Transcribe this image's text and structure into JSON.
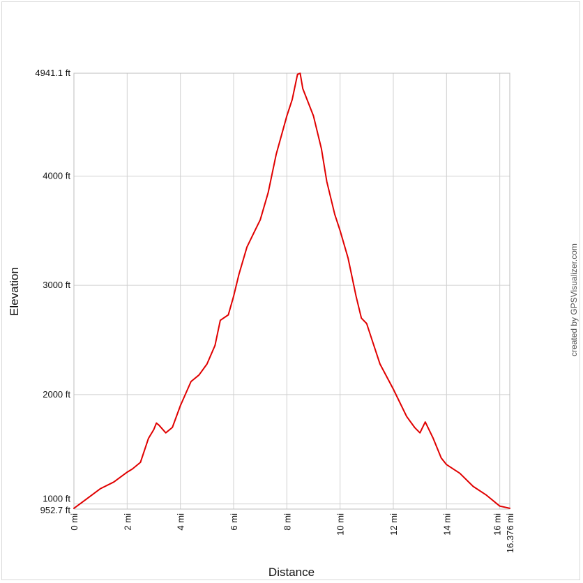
{
  "chart_data": {
    "type": "line",
    "xlabel": "Distance",
    "ylabel": "Elevation",
    "xlim": [
      0,
      16.376
    ],
    "ylim": [
      952.7,
      4941.1
    ],
    "grid": true,
    "series_color": "#e00000",
    "grid_color": "#d0d0d0",
    "x_ticks": [
      {
        "value": 0,
        "label": "0 mi"
      },
      {
        "value": 2,
        "label": "2 mi"
      },
      {
        "value": 4,
        "label": "4 mi"
      },
      {
        "value": 6,
        "label": "6 mi"
      },
      {
        "value": 8,
        "label": "8 mi"
      },
      {
        "value": 10,
        "label": "10 mi"
      },
      {
        "value": 12,
        "label": "12 mi"
      },
      {
        "value": 14,
        "label": "14 mi"
      },
      {
        "value": 16,
        "label": "16 mi"
      },
      {
        "value": 16.376,
        "label": "16.376 mi"
      }
    ],
    "y_ticks": [
      {
        "value": 952.7,
        "label": "952.7 ft"
      },
      {
        "value": 1000,
        "label": "1000 ft"
      },
      {
        "value": 2000,
        "label": "2000 ft"
      },
      {
        "value": 3000,
        "label": "3000 ft"
      },
      {
        "value": 4000,
        "label": "4000 ft"
      },
      {
        "value": 4941.1,
        "label": "4941.1 ft"
      }
    ],
    "series": [
      {
        "x": [
          0,
          0.5,
          1.0,
          1.5,
          2.0,
          2.2,
          2.5,
          2.8,
          3.0,
          3.1,
          3.2,
          3.45,
          3.7,
          4.0,
          4.4,
          4.7,
          5.0,
          5.3,
          5.5,
          5.8,
          6.0,
          6.2,
          6.5,
          6.8,
          7.0,
          7.3,
          7.6,
          8.0,
          8.2,
          8.4,
          8.5,
          8.6,
          9.0,
          9.3,
          9.5,
          9.8,
          10.0,
          10.3,
          10.6,
          10.8,
          11.0,
          11.2,
          11.5,
          12.0,
          12.5,
          12.8,
          13.0,
          13.2,
          13.5,
          13.8,
          14.0,
          14.5,
          15.0,
          15.5,
          16.0,
          16.376
        ],
        "y": [
          960,
          1050,
          1140,
          1200,
          1290,
          1320,
          1380,
          1600,
          1680,
          1740,
          1720,
          1650,
          1700,
          1900,
          2120,
          2180,
          2280,
          2450,
          2680,
          2730,
          2900,
          3100,
          3350,
          3500,
          3600,
          3850,
          4200,
          4550,
          4700,
          4930,
          4941.1,
          4800,
          4550,
          4250,
          3950,
          3650,
          3500,
          3250,
          2900,
          2700,
          2650,
          2500,
          2280,
          2050,
          1800,
          1700,
          1650,
          1750,
          1600,
          1420,
          1360,
          1280,
          1160,
          1080,
          980,
          960
        ]
      }
    ]
  },
  "credit": "created by GPSVisualizer.com"
}
